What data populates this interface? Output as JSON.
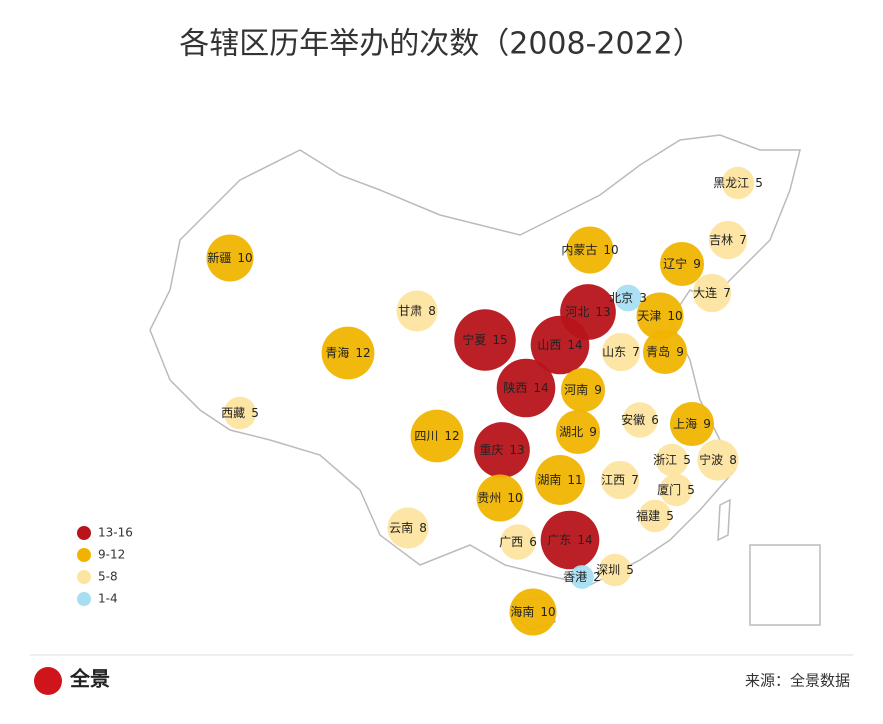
{
  "title": "各辖区历年举办的次数（2008-2022）",
  "regions": [
    {
      "name": "新疆",
      "value": 10
    },
    {
      "name": "内蒙古",
      "value": 10
    },
    {
      "name": "黑龙江",
      "value": 5
    },
    {
      "name": "吉林",
      "value": 7
    },
    {
      "name": "辽宁",
      "value": 9
    },
    {
      "name": "北京",
      "value": 3
    },
    {
      "name": "河北",
      "value": 13
    },
    {
      "name": "天津",
      "value": 10
    },
    {
      "name": "大连",
      "value": 7
    },
    {
      "name": "甘肃",
      "value": 8
    },
    {
      "name": "宁夏",
      "value": 15
    },
    {
      "name": "山西",
      "value": 14
    },
    {
      "name": "山东",
      "value": 7
    },
    {
      "name": "青岛",
      "value": 9
    },
    {
      "name": "青海",
      "value": 12
    },
    {
      "name": "陕西",
      "value": 14
    },
    {
      "name": "河南",
      "value": 9
    },
    {
      "name": "西藏",
      "value": 5
    },
    {
      "name": "安徽",
      "value": 6
    },
    {
      "name": "上海",
      "value": 9
    },
    {
      "name": "湖北",
      "value": 9
    },
    {
      "name": "四川",
      "value": 12
    },
    {
      "name": "重庆",
      "value": 13
    },
    {
      "name": "浙江",
      "value": 5
    },
    {
      "name": "宁波",
      "value": 8
    },
    {
      "name": "湖南",
      "value": 11
    },
    {
      "name": "江西",
      "value": 7
    },
    {
      "name": "贵州",
      "value": 10
    },
    {
      "name": "厦门",
      "value": 5
    },
    {
      "name": "福建",
      "value": 5
    },
    {
      "name": "云南",
      "value": 8
    },
    {
      "name": "广西",
      "value": 6
    },
    {
      "name": "广东",
      "value": 14
    },
    {
      "name": "深圳",
      "value": 5
    },
    {
      "name": "香港",
      "value": 2
    },
    {
      "name": "海南",
      "value": 10
    }
  ],
  "legend": [
    {
      "label": "13-16",
      "color": "#b8141b"
    },
    {
      "label": "9-12",
      "color": "#f0b400"
    },
    {
      "label": "5-8",
      "color": "#fde4a0"
    },
    {
      "label": "1-4",
      "color": "#a8def2"
    }
  ],
  "logo": "全景",
  "source": "来源：全景数据"
}
